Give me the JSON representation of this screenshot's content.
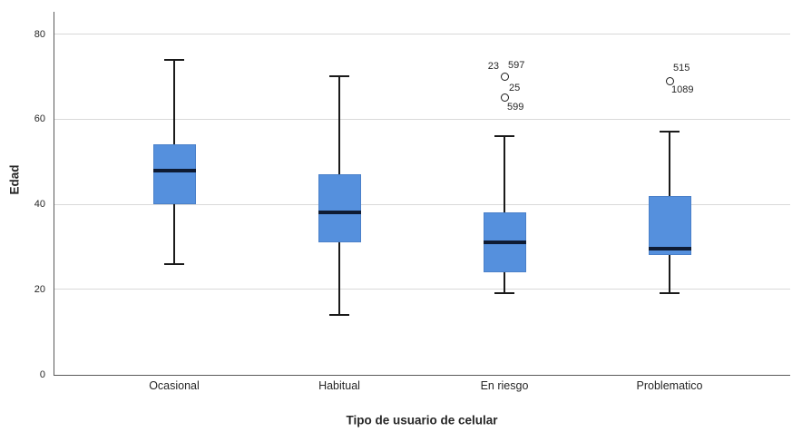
{
  "colors": {
    "background": "#FFFFFF",
    "box_fill": "#5590DD",
    "box_border": "#4A80C9",
    "median_line": "#0E1B33",
    "whisker": "#1A1A1A",
    "gridline": "#D9D9D9",
    "axis_line": "#5A5A5A",
    "text": "#262626",
    "outlier_fill": "#FFFFFF"
  },
  "chart_data": {
    "type": "boxplot",
    "title": "",
    "xlabel": "Tipo de usuario de celular",
    "ylabel": "Edad",
    "ylim": [
      0,
      85
    ],
    "yticks": [
      0,
      20,
      40,
      60,
      80
    ],
    "grid": "horizontal",
    "legend": "none",
    "categories": [
      "Ocasional",
      "Habitual",
      "En riesgo",
      "Problematico"
    ],
    "series": [
      {
        "category": "Ocasional",
        "whisker_low": 26,
        "q1": 40,
        "median": 48,
        "q3": 54,
        "whisker_high": 74,
        "outliers": []
      },
      {
        "category": "Habitual",
        "whisker_low": 14,
        "q1": 31,
        "median": 38,
        "q3": 47,
        "whisker_high": 70,
        "outliers": []
      },
      {
        "category": "En riesgo",
        "whisker_low": 19,
        "q1": 24,
        "median": 31,
        "q3": 38,
        "whisker_high": 56,
        "outliers": [
          {
            "value": 70,
            "labels": [
              {
                "text": "23",
                "side": "left",
                "dx": -6,
                "dy": -11
              },
              {
                "text": "597",
                "side": "right",
                "dx": 4,
                "dy": -12
              }
            ]
          },
          {
            "value": 65,
            "labels": [
              {
                "text": "25",
                "side": "right",
                "dx": 5,
                "dy": -11
              },
              {
                "text": "599",
                "side": "right",
                "dx": 3,
                "dy": 10
              }
            ]
          }
        ]
      },
      {
        "category": "Problematico",
        "whisker_low": 19,
        "q1": 28,
        "median": 29.5,
        "q3": 42,
        "whisker_high": 57,
        "outliers": [
          {
            "value": 69,
            "labels": [
              {
                "text": "515",
                "side": "right",
                "dx": 4,
                "dy": -14
              },
              {
                "text": "1089",
                "side": "right",
                "dx": 2,
                "dy": 10
              }
            ]
          }
        ]
      }
    ]
  }
}
